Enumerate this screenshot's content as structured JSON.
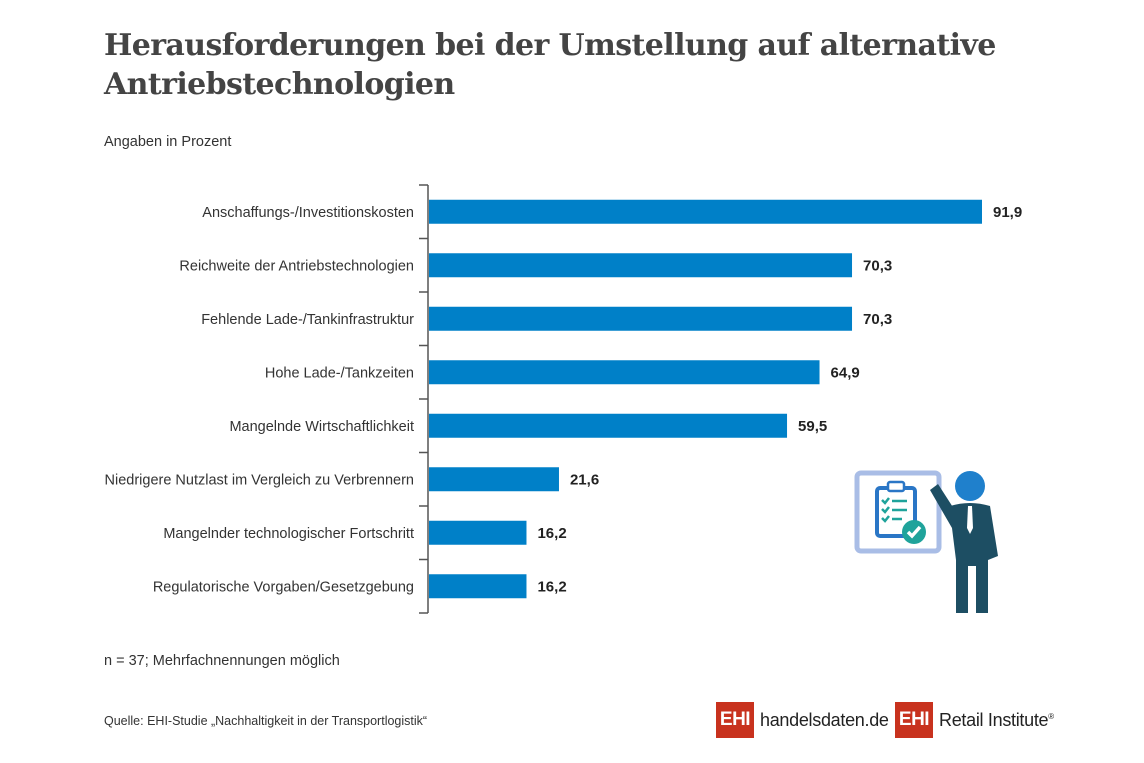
{
  "header": {
    "title": "Herausforderungen bei der Umstellung auf alternative Antriebstechnologien",
    "subtitle": "Angaben in Prozent"
  },
  "footer": {
    "note": "n = 37; Mehrfachnennungen möglich",
    "source": "Quelle: EHI-Studie „Nachhaltigkeit in der Transportlogistik“"
  },
  "logos": [
    {
      "badge": "EHI",
      "text": "handelsdaten.de"
    },
    {
      "badge": "EHI",
      "text": "Retail Institute",
      "mark": "®"
    }
  ],
  "illustration": "presenter-with-checklist-icon",
  "colors": {
    "bar": "#0080c8",
    "axis": "#555555",
    "brand_red": "#c8321e",
    "figure": "#1d4e63",
    "board": "#a9bde6",
    "check": "#1fa39b"
  },
  "chart_data": {
    "type": "bar",
    "orientation": "horizontal",
    "title": "Herausforderungen bei der Umstellung auf alternative Antriebstechnologien",
    "subtitle": "Angaben in Prozent",
    "xlabel": "",
    "ylabel": "",
    "xlim": [
      0,
      100
    ],
    "grid": false,
    "categories": [
      "Anschaffungs-/Investitionskosten",
      "Reichweite der Antriebstechnologien",
      "Fehlende Lade-/Tankinfrastruktur",
      "Hohe Lade-/Tankzeiten",
      "Mangelnde Wirtschaftlichkeit",
      "Niedrigere Nutzlast im Vergleich zu Verbrennern",
      "Mangelnder technologischer Fortschritt",
      "Regulatorische Vorgaben/Gesetzgebung"
    ],
    "values": [
      91.9,
      70.3,
      70.3,
      64.9,
      59.5,
      21.6,
      16.2,
      16.2
    ],
    "value_labels": [
      "91,9",
      "70,3",
      "70,3",
      "64,9",
      "59,5",
      "21,6",
      "16,2",
      "16,2"
    ]
  }
}
